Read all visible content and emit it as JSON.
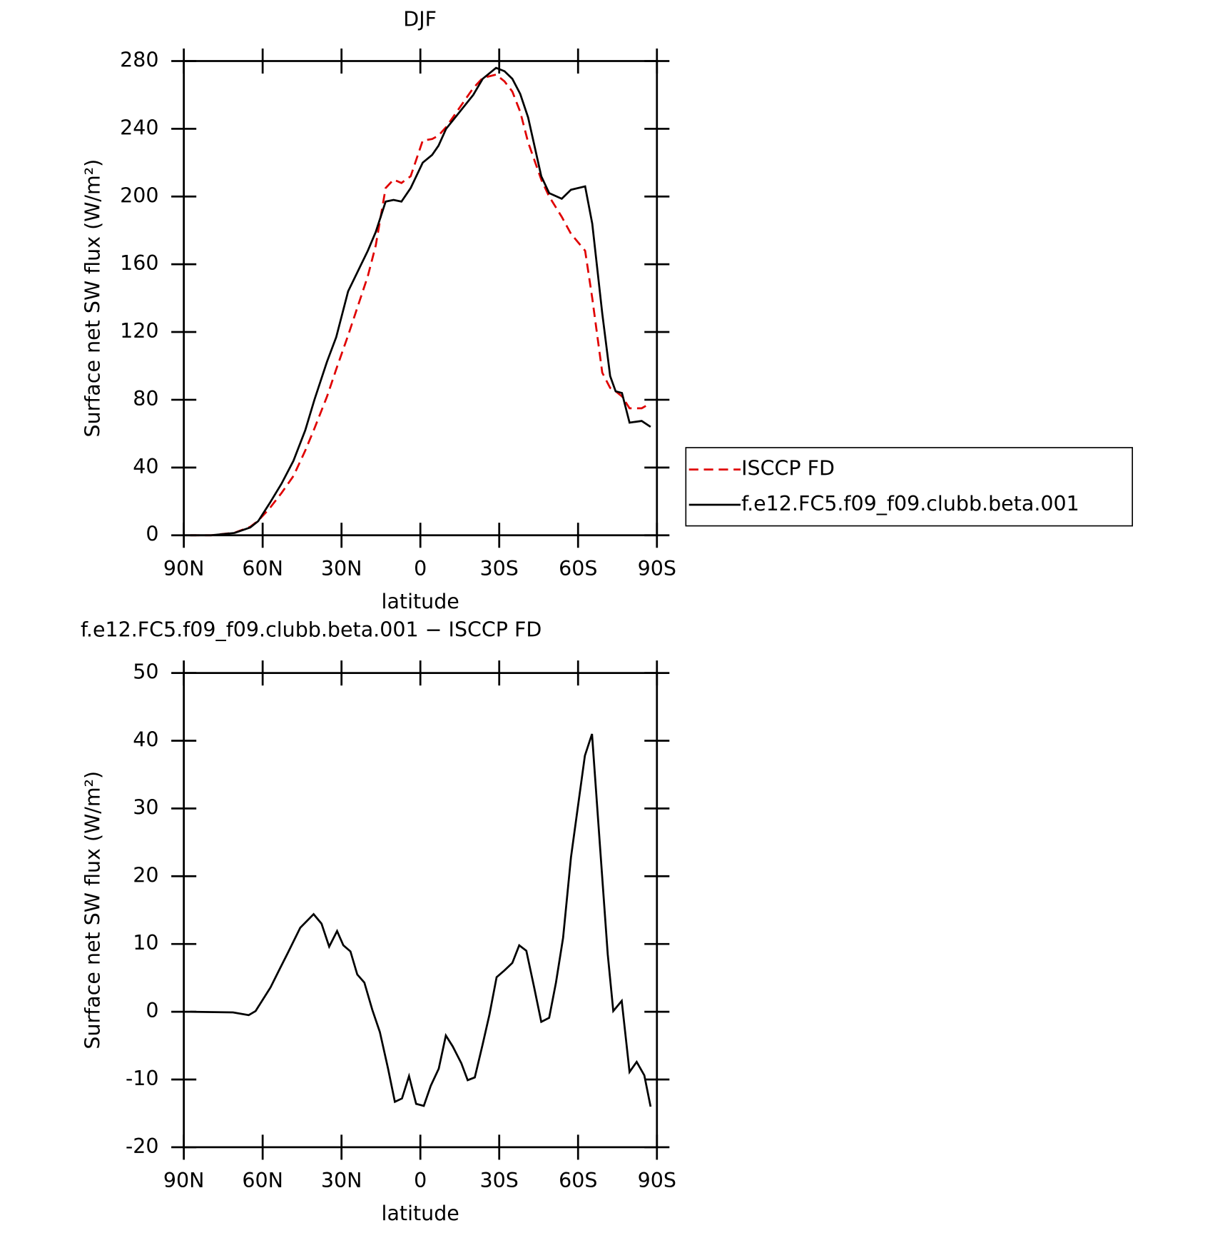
{
  "chart_data": [
    {
      "type": "line",
      "title": "DJF",
      "xlabel": "latitude",
      "ylabel": "Surface net SW flux (W/m²)",
      "x": [
        87.6,
        79.6,
        70.7,
        64.7,
        61.7,
        57.3,
        52.8,
        48.3,
        43.8,
        40.3,
        35.5,
        32,
        27.5,
        20,
        17,
        13.2,
        10.2,
        7.2,
        3.7,
        -0.9,
        -4.5,
        -6.9,
        -9.8,
        -20.1,
        -23.7,
        -28.8,
        -32,
        -35,
        -38,
        -41,
        -46,
        -49,
        -53.8,
        -57.3,
        -62.7,
        -65.4,
        -69.2,
        -72.2,
        -74.3,
        -76.7,
        -79.6,
        -84.2,
        -87.6
      ],
      "series": [
        {
          "name": "ISCCP FD",
          "color": "#e00000",
          "line_style": "dashed",
          "values": [
            0,
            0,
            1.5,
            5,
            8.6,
            16,
            25,
            35,
            50,
            63,
            82,
            98,
            118,
            153,
            171,
            205,
            210,
            208,
            212,
            233,
            234,
            236,
            241,
            264,
            270,
            272,
            268,
            262,
            250,
            232,
            210,
            200,
            188,
            178,
            168,
            140,
            96,
            87,
            85,
            82,
            75,
            75,
            78
          ]
        },
        {
          "name": "f.e12.FC5.f09_f09.clubb.beta.001",
          "color": "#000000",
          "line_style": "solid",
          "values": [
            0,
            0,
            1.4,
            4.6,
            8.3,
            19,
            30.5,
            44,
            62,
            80,
            102.6,
            117,
            144,
            168,
            179,
            197,
            198,
            197,
            205,
            220,
            224.6,
            230,
            240,
            260,
            269.5,
            276,
            274,
            269.5,
            260.6,
            246.7,
            212,
            202,
            198.7,
            204,
            206,
            184,
            131,
            94,
            85,
            84,
            66.5,
            67.5,
            64
          ]
        }
      ],
      "xlim": [
        90,
        -90
      ],
      "xticks": [
        {
          "value": 90,
          "label": "90N"
        },
        {
          "value": 60,
          "label": "60N"
        },
        {
          "value": 30,
          "label": "30N"
        },
        0,
        {
          "value": -30,
          "label": "30S"
        },
        {
          "value": -60,
          "label": "60S"
        },
        {
          "value": -90,
          "label": "90S"
        }
      ],
      "ylim": [
        0,
        280
      ],
      "yticks": [
        0,
        40,
        80,
        120,
        160,
        200,
        240,
        280
      ],
      "legend": "right"
    },
    {
      "type": "line",
      "title": "f.e12.FC5.f09_f09.clubb.beta.001 − ISCCP FD",
      "xlabel": "latitude",
      "ylabel": "Surface net SW flux (W/m²)",
      "x": [
        87.6,
        71.3,
        65.3,
        62.7,
        57.0,
        53.4,
        50.4,
        45.7,
        40.6,
        37.6,
        34.7,
        31.7,
        29.3,
        26.6,
        24.0,
        21.3,
        18.3,
        15.4,
        12.3,
        9.7,
        7.0,
        4.3,
        1.6,
        -1.3,
        -4.0,
        -7.0,
        -9.7,
        -12.3,
        -15.6,
        -18.0,
        -20.7,
        -23.6,
        -26.3,
        -29.0,
        -32.0,
        -35.0,
        -37.6,
        -40.3,
        -43.3,
        -46.0,
        -49.0,
        -51.6,
        -54.3,
        -57.3,
        -62.6,
        -65.3,
        -68.3,
        -71.3,
        -73.4,
        -76.6,
        -79.6,
        -82.3,
        -85.2,
        -87.6
      ],
      "series": [
        {
          "name": null,
          "color": "#000000",
          "line_style": "solid",
          "values": [
            0,
            -0.1,
            -0.5,
            0.1,
            3.6,
            6.4,
            8.7,
            12.4,
            14.4,
            13.0,
            9.6,
            11.9,
            9.8,
            8.9,
            5.5,
            4.3,
            0.3,
            -3.0,
            -8.4,
            -13.3,
            -12.8,
            -9.5,
            -13.6,
            -13.9,
            -10.9,
            -8.4,
            -3.5,
            -5.1,
            -7.6,
            -10.1,
            -9.7,
            -5.0,
            -0.4,
            5.1,
            6.1,
            7.2,
            9.8,
            9.0,
            3.6,
            -1.5,
            -0.9,
            4.3,
            10.9,
            22.8,
            37.8,
            41.0,
            24.6,
            8.5,
            0.1,
            1.6,
            -8.9,
            -7.4,
            -9.4,
            -14.0
          ]
        }
      ],
      "xlim": [
        90,
        -90
      ],
      "xticks": [
        {
          "value": 90,
          "label": "90N"
        },
        {
          "value": 60,
          "label": "60N"
        },
        {
          "value": 30,
          "label": "30N"
        },
        0,
        {
          "value": -30,
          "label": "30S"
        },
        {
          "value": -60,
          "label": "60S"
        },
        {
          "value": -90,
          "label": "90S"
        }
      ],
      "ylim": [
        -20,
        50
      ],
      "yticks": [
        -20,
        -10,
        0,
        10,
        20,
        30,
        40,
        50
      ]
    }
  ]
}
